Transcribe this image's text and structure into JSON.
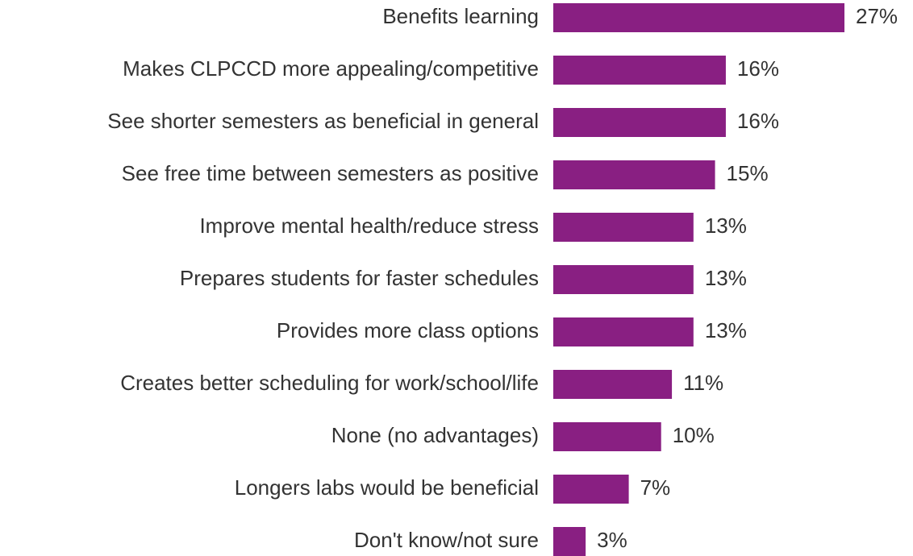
{
  "chart_data": {
    "type": "barh",
    "categories": [
      "Benefits learning",
      "Makes CLPCCD more appealing/competitive",
      "See shorter semesters as beneficial in general",
      "See free time between semesters as positive",
      "Improve mental health/reduce stress",
      "Prepares students for faster schedules",
      "Provides more class options",
      "Creates better scheduling for work/school/life",
      "None (no advantages)",
      "Longers labs would be beneficial",
      "Don't know/not sure"
    ],
    "values": [
      27,
      16,
      16,
      15,
      13,
      13,
      13,
      11,
      10,
      7,
      3
    ],
    "value_labels": [
      "27%",
      "16%",
      "16%",
      "15%",
      "13%",
      "13%",
      "13%",
      "11%",
      "10%",
      "7%",
      "3%"
    ],
    "color": "#891f82"
  }
}
